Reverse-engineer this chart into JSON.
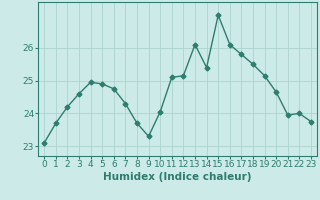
{
  "xlabel": "Humidex (Indice chaleur)",
  "x": [
    0,
    1,
    2,
    3,
    4,
    5,
    6,
    7,
    8,
    9,
    10,
    11,
    12,
    13,
    14,
    15,
    16,
    17,
    18,
    19,
    20,
    21,
    22,
    23
  ],
  "y": [
    23.1,
    23.7,
    24.2,
    24.6,
    24.95,
    24.9,
    24.75,
    24.3,
    23.7,
    23.3,
    24.05,
    25.1,
    25.15,
    26.1,
    25.4,
    27.0,
    26.1,
    25.8,
    25.5,
    25.15,
    24.65,
    23.95,
    24.0,
    23.75
  ],
  "line_color": "#2e7d6e",
  "marker": "D",
  "marker_size": 2.5,
  "bg_color": "#cceae7",
  "grid_color": "#aed4d0",
  "ylim": [
    22.7,
    27.4
  ],
  "yticks": [
    23,
    24,
    25,
    26
  ],
  "xticks": [
    0,
    1,
    2,
    3,
    4,
    5,
    6,
    7,
    8,
    9,
    10,
    11,
    12,
    13,
    14,
    15,
    16,
    17,
    18,
    19,
    20,
    21,
    22,
    23
  ],
  "tick_fontsize": 6.5,
  "xlabel_fontsize": 7.5,
  "linewidth": 1.0
}
